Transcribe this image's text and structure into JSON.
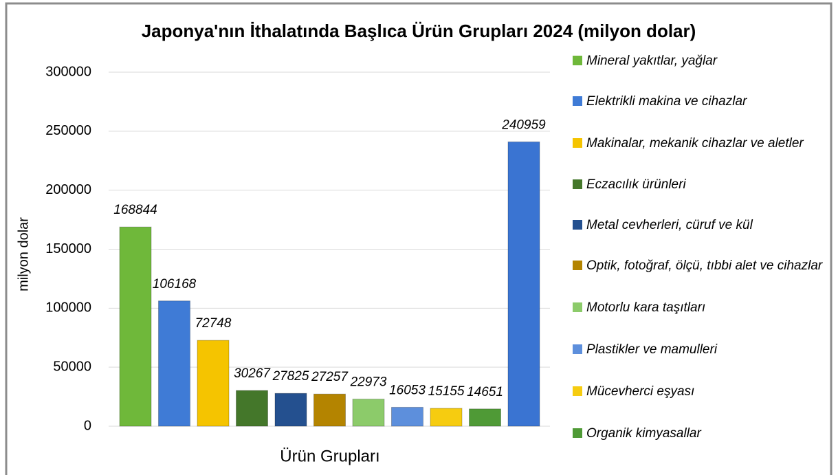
{
  "chart_data": {
    "type": "bar",
    "title": "Japonya'nın İthalatında Başlıca Ürün Grupları 2024 (milyon dolar)",
    "xlabel": "Ürün Grupları",
    "ylabel": "milyon dolar",
    "categories": [
      "Mineral yakıtlar, yağlar",
      "Elektrikli makina ve cihazlar",
      "Makinalar, mekanik cihazlar ve aletler",
      "Eczacılık ürünleri",
      "Metal cevherleri, cüruf ve kül",
      "Optik, fotoğraf, ölçü, tıbbi alet ve cihazlar",
      "Motorlu kara taşıtları",
      "Plastikler ve mamulleri",
      "Mücevherci eşyası",
      "Organik kimyasallar",
      null
    ],
    "values": [
      168844,
      106168,
      72748,
      30267,
      27825,
      27257,
      22973,
      16053,
      15155,
      14651,
      240959
    ],
    "colors": [
      "#6fb83a",
      "#3f7bd6",
      "#f5c400",
      "#44772a",
      "#24508f",
      "#b48400",
      "#8ccb6a",
      "#5d8fdc",
      "#f6cc10",
      "#4f9a36",
      "#3a74d2"
    ],
    "ylim": [
      0,
      300000
    ],
    "yticks": [
      0,
      50000,
      100000,
      150000,
      200000,
      250000,
      300000
    ],
    "grid": true,
    "legend": "right"
  }
}
